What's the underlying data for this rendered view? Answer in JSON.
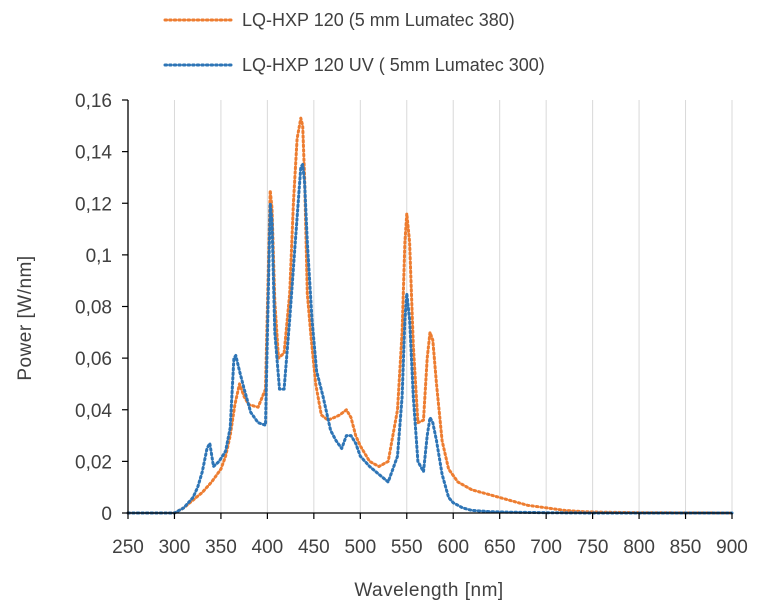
{
  "chart_data": {
    "type": "line",
    "xlabel": "Wavelength [nm]",
    "ylabel": "Power [W/nm]",
    "xlim": [
      250,
      900
    ],
    "ylim": [
      0,
      0.16
    ],
    "x_ticks": [
      250,
      300,
      350,
      400,
      450,
      500,
      550,
      600,
      650,
      700,
      750,
      800,
      850,
      900
    ],
    "x_tick_labels": [
      "250",
      "300",
      "350",
      "400",
      "450",
      "500",
      "550",
      "600",
      "650",
      "700",
      "750",
      "800",
      "850",
      "900"
    ],
    "y_ticks": [
      0,
      0.02,
      0.04,
      0.06,
      0.08,
      0.1,
      0.12,
      0.14,
      0.16
    ],
    "y_tick_labels": [
      "0",
      "0,02",
      "0,04",
      "0,06",
      "0,08",
      "0,1",
      "0,12",
      "0,14",
      "0,16"
    ],
    "grid": "vertical",
    "legend_position": "top",
    "line_style": "dotted",
    "series": [
      {
        "name": "LQ-HXP 120 (5 mm Lumatec 380)",
        "color": "#ED7D31",
        "x": [
          250,
          300,
          310,
          320,
          330,
          340,
          350,
          355,
          360,
          365,
          370,
          375,
          380,
          390,
          398,
          403,
          405,
          408,
          412,
          418,
          424,
          428,
          432,
          436,
          438,
          440,
          443,
          447,
          452,
          458,
          465,
          472,
          478,
          485,
          490,
          495,
          500,
          510,
          520,
          530,
          540,
          545,
          548,
          550,
          553,
          557,
          562,
          568,
          572,
          575,
          578,
          582,
          588,
          595,
          605,
          620,
          640,
          660,
          680,
          700,
          720,
          740,
          760,
          800,
          900
        ],
        "y": [
          0,
          0,
          0.002,
          0.005,
          0.008,
          0.012,
          0.017,
          0.022,
          0.03,
          0.042,
          0.05,
          0.045,
          0.042,
          0.041,
          0.048,
          0.125,
          0.118,
          0.082,
          0.06,
          0.062,
          0.085,
          0.12,
          0.145,
          0.153,
          0.15,
          0.13,
          0.085,
          0.068,
          0.05,
          0.038,
          0.036,
          0.037,
          0.038,
          0.04,
          0.037,
          0.03,
          0.026,
          0.02,
          0.018,
          0.02,
          0.04,
          0.07,
          0.105,
          0.116,
          0.105,
          0.065,
          0.035,
          0.036,
          0.06,
          0.07,
          0.067,
          0.05,
          0.028,
          0.017,
          0.012,
          0.009,
          0.007,
          0.005,
          0.003,
          0.002,
          0.001,
          0.0005,
          0.0003,
          0.0001,
          0
        ]
      },
      {
        "name": "LQ-HXP 120 UV ( 5mm Lumatec 300)",
        "color": "#2E75B6",
        "x": [
          250,
          300,
          310,
          320,
          325,
          330,
          335,
          338,
          342,
          348,
          355,
          360,
          364,
          366,
          370,
          375,
          382,
          390,
          398,
          403,
          405,
          408,
          413,
          418,
          424,
          430,
          436,
          438,
          440,
          443,
          448,
          453,
          460,
          468,
          474,
          480,
          485,
          490,
          495,
          500,
          510,
          520,
          530,
          540,
          545,
          548,
          550,
          553,
          557,
          562,
          568,
          572,
          575,
          578,
          582,
          588,
          595,
          600,
          605,
          610,
          620,
          640,
          660,
          700,
          750,
          800,
          900
        ],
        "y": [
          0,
          0,
          0.002,
          0.006,
          0.01,
          0.016,
          0.025,
          0.027,
          0.018,
          0.02,
          0.024,
          0.033,
          0.06,
          0.061,
          0.055,
          0.048,
          0.039,
          0.035,
          0.034,
          0.12,
          0.113,
          0.07,
          0.048,
          0.048,
          0.075,
          0.105,
          0.134,
          0.135,
          0.128,
          0.105,
          0.075,
          0.055,
          0.045,
          0.032,
          0.028,
          0.025,
          0.03,
          0.03,
          0.027,
          0.022,
          0.018,
          0.015,
          0.012,
          0.022,
          0.045,
          0.075,
          0.085,
          0.075,
          0.045,
          0.02,
          0.016,
          0.03,
          0.037,
          0.035,
          0.028,
          0.015,
          0.006,
          0.004,
          0.003,
          0.002,
          0.001,
          0.0005,
          0.0003,
          0.0001,
          0,
          0,
          0
        ]
      }
    ]
  }
}
